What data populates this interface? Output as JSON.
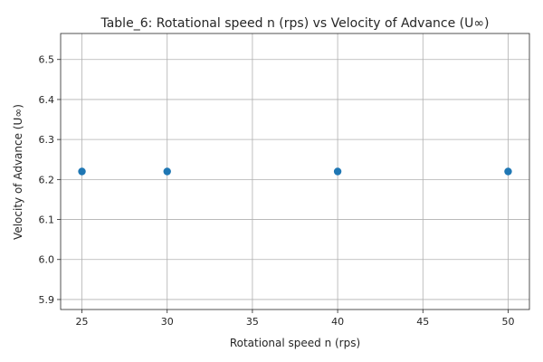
{
  "chart_data": {
    "type": "scatter",
    "title": "Table_6: Rotational  speed    n (rps) vs Velocity  of  Advance  (U∞)",
    "xlabel": "Rotational  speed    n (rps)",
    "ylabel": "Velocity  of  Advance  (U∞)",
    "x": [
      25,
      30,
      40,
      50
    ],
    "y": [
      6.22,
      6.22,
      6.22,
      6.22
    ],
    "xlim": [
      23.75,
      51.25
    ],
    "ylim": [
      5.875,
      6.565
    ],
    "xticks": [
      25,
      30,
      35,
      40,
      45,
      50
    ],
    "xtick_labels": [
      "25",
      "30",
      "35",
      "40",
      "45",
      "50"
    ],
    "yticks": [
      5.9,
      6.0,
      6.1,
      6.2,
      6.3,
      6.4,
      6.5
    ],
    "ytick_labels": [
      "5.9",
      "6.0",
      "6.1",
      "6.2",
      "6.3",
      "6.4",
      "6.5"
    ],
    "grid": true,
    "marker_color": "#1f77b4"
  }
}
